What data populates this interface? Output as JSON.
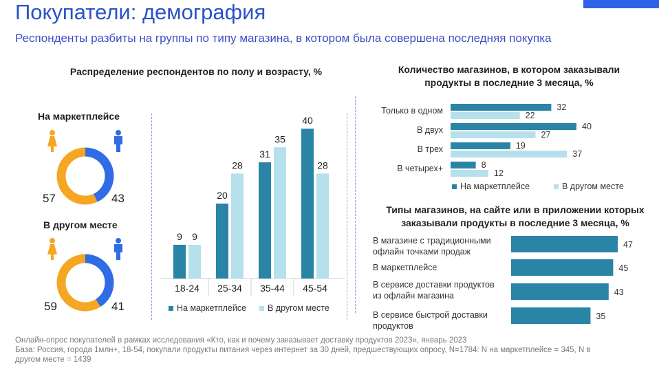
{
  "header": {
    "title": "Покупатели: демография",
    "subtitle": "Респонденты разбиты на группы по типу магазина, в котором была совершена последняя покупка"
  },
  "colors": {
    "dark_teal": "#2a84a6",
    "light_blue": "#b6e0ec",
    "female_orange": "#f5a623",
    "male_blue": "#2f6ce6",
    "title_blue": "#2a52c9"
  },
  "icons": [
    "female-icon",
    "male-icon"
  ],
  "left_section": {
    "title": "Распределение респондентов по полу и возрасту, %",
    "groups": [
      {
        "label": "На маркетплейсе",
        "female": "57",
        "male": "43"
      },
      {
        "label": "В другом месте",
        "female": "59",
        "male": "41"
      }
    ]
  },
  "right_top": {
    "title_line1": "Количество магазинов, в котором заказывали",
    "title_line2": "продукты в последние 3 месяца, %"
  },
  "right_bottom": {
    "title_line1": "Типы магазинов, на сайте или в приложении которых",
    "title_line2": "заказывали продукты в последние 3 месяца, %"
  },
  "legend": {
    "series1": "На маркетплейсе",
    "series2": "В другом месте"
  },
  "chart_data": [
    {
      "type": "pie",
      "title": "На маркетплейсе",
      "categories": [
        "female",
        "male"
      ],
      "values": [
        57,
        43
      ]
    },
    {
      "type": "pie",
      "title": "В другом месте",
      "categories": [
        "female",
        "male"
      ],
      "values": [
        59,
        41
      ]
    },
    {
      "type": "bar",
      "title": "Распределение респондентов по полу и возрасту, %",
      "categories": [
        "18-24",
        "25-34",
        "35-44",
        "45-54"
      ],
      "series": [
        {
          "name": "На маркетплейсе",
          "values": [
            9,
            20,
            31,
            40
          ]
        },
        {
          "name": "В другом месте",
          "values": [
            9,
            28,
            35,
            28
          ]
        }
      ],
      "ylim": [
        0,
        40
      ]
    },
    {
      "type": "bar",
      "orientation": "horizontal",
      "title": "Количество магазинов, в котором заказывали продукты в последние 3 месяца, %",
      "categories": [
        "Только в одном",
        "В двух",
        "В трех",
        "В четырех+"
      ],
      "series": [
        {
          "name": "На маркетплейсе",
          "values": [
            32,
            40,
            19,
            8
          ]
        },
        {
          "name": "В другом месте",
          "values": [
            22,
            27,
            37,
            12
          ]
        }
      ],
      "xlim": [
        0,
        40
      ]
    },
    {
      "type": "bar",
      "orientation": "horizontal",
      "title": "Типы магазинов, на сайте или в приложении которых заказывали продукты в последние 3 месяца, %",
      "categories": [
        [
          "В магазине с традиционными",
          "офлайн точками продаж"
        ],
        [
          "В маркетплейсе"
        ],
        [
          "В сервисе доставки продуктов",
          "из офлайн магазина"
        ],
        [
          "В сервисе быстрой доставки",
          "продуктов"
        ]
      ],
      "values": [
        47,
        45,
        43,
        35
      ],
      "xlim": [
        0,
        47
      ]
    }
  ],
  "footnote": {
    "line1": "Онлайн-опрос покупателей в рамках исследования «Кто, как и почему заказывает доставку продуктов 2023», январь 2023",
    "line2": "База: Россия, города 1млн+, 18-54, покупали продукты питания через интернет за 30 дней, предшествующих опросу, N=1784: N на маркетплейсе = 345, N в",
    "line3": "другом месте = 1439"
  }
}
